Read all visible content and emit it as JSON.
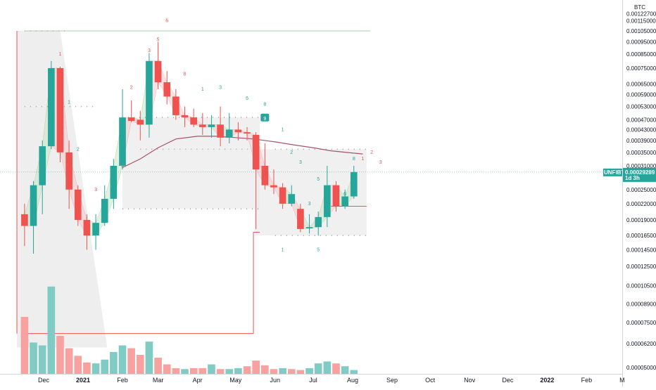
{
  "chart": {
    "symbol": "UNFIBTC",
    "currency_label": "BTC",
    "last_price_label": "0.00029289",
    "countdown_label": "1d 3h",
    "colors": {
      "up": "#26a69a",
      "down": "#ef5350",
      "volume_up": "#80cbc4",
      "volume_down": "#f7a1a1",
      "ma_line": "#a6546b",
      "band_fill": "#ececec",
      "level_green": "#a5d6a7",
      "level_red": "#ef5350",
      "cloud_green": "#c8e6c9",
      "cloud_red": "#f8c9c9",
      "cloud_yellow": "#fff9c4",
      "label_bg": "#26a69a",
      "axis_text": "#131722"
    }
  },
  "price_axis": {
    "labels": [
      {
        "label": "0.00122700",
        "v": 0.001227
      },
      {
        "label": "0.00115000",
        "v": 0.00115
      },
      {
        "label": "0.00105000",
        "v": 0.00105
      },
      {
        "label": "0.00095000",
        "v": 0.00095
      },
      {
        "label": "0.00085000",
        "v": 0.00085
      },
      {
        "label": "0.00075000",
        "v": 0.00075
      },
      {
        "label": "0.00065000",
        "v": 0.00065
      },
      {
        "label": "0.00059000",
        "v": 0.00059
      },
      {
        "label": "0.00053000",
        "v": 0.00053
      },
      {
        "label": "0.00047000",
        "v": 0.00047
      },
      {
        "label": "0.00043000",
        "v": 0.00043
      },
      {
        "label": "0.00039000",
        "v": 0.00039
      },
      {
        "label": "0.00035000",
        "v": 0.00035
      },
      {
        "label": "0.00031000",
        "v": 0.00031
      },
      {
        "label": "0.00025000",
        "v": 0.00025
      },
      {
        "label": "0.00022000",
        "v": 0.00022
      },
      {
        "label": "0.00019000",
        "v": 0.00019
      },
      {
        "label": "0.00016500",
        "v": 0.000165
      },
      {
        "label": "0.00014500",
        "v": 0.000145
      },
      {
        "label": "0.00012500",
        "v": 0.000125
      },
      {
        "label": "0.00010500",
        "v": 0.000105
      },
      {
        "label": "0.00008900",
        "v": 8.9e-05
      },
      {
        "label": "0.00007500",
        "v": 7.5e-05
      },
      {
        "label": "0.00006200",
        "v": 6.2e-05
      },
      {
        "label": "0.00005000",
        "v": 5e-05
      }
    ]
  },
  "time_axis": {
    "labels": [
      {
        "label": "Dec",
        "d": "2020-12-01",
        "bold": false
      },
      {
        "label": "2021",
        "d": "2021-01-01",
        "bold": true
      },
      {
        "label": "Feb",
        "d": "2021-02-01",
        "bold": false
      },
      {
        "label": "Mar",
        "d": "2021-03-01",
        "bold": false
      },
      {
        "label": "Apr",
        "d": "2021-04-01",
        "bold": false
      },
      {
        "label": "May",
        "d": "2021-05-01",
        "bold": false
      },
      {
        "label": "Jun",
        "d": "2021-06-01",
        "bold": false
      },
      {
        "label": "Jul",
        "d": "2021-07-01",
        "bold": false
      },
      {
        "label": "Aug",
        "d": "2021-08-01",
        "bold": false
      },
      {
        "label": "Sep",
        "d": "2021-09-01",
        "bold": false
      },
      {
        "label": "Oct",
        "d": "2021-10-01",
        "bold": false
      },
      {
        "label": "Nov",
        "d": "2021-11-01",
        "bold": false
      },
      {
        "label": "Dec",
        "d": "2021-12-01",
        "bold": false
      },
      {
        "label": "2022",
        "d": "2022-01-01",
        "bold": true
      },
      {
        "label": "Feb",
        "d": "2022-02-01",
        "bold": false
      },
      {
        "label": "M",
        "d": "2022-03-01",
        "bold": false
      }
    ]
  },
  "chart_data": {
    "type": "candlestick",
    "symbol": "UNFIBTC",
    "x_axis": "date (week start)",
    "y_axis": "price in BTC (log scale)",
    "ylim": [
      4.5e-05,
      0.00125
    ],
    "series": [
      {
        "d": "2020-11-16",
        "o": 0.0002,
        "h": 0.00022,
        "l": 0.00015,
        "c": 0.00018
      },
      {
        "d": "2020-11-23",
        "o": 0.00018,
        "h": 0.00027,
        "l": 0.00014,
        "c": 0.00026
      },
      {
        "d": "2020-11-30",
        "o": 0.00026,
        "h": 0.00039,
        "l": 0.0002,
        "c": 0.00037
      },
      {
        "d": "2020-12-07",
        "o": 0.00037,
        "h": 0.0008,
        "l": 0.00036,
        "c": 0.00075
      },
      {
        "d": "2020-12-14",
        "o": 0.00075,
        "h": 0.00076,
        "l": 0.00032,
        "c": 0.00035
      },
      {
        "d": "2020-12-21",
        "o": 0.00035,
        "h": 0.00039,
        "l": 0.00021,
        "c": 0.00025
      },
      {
        "d": "2020-12-28",
        "o": 0.00025,
        "h": 0.00026,
        "l": 0.00018,
        "c": 0.00019
      },
      {
        "d": "2021-01-04",
        "o": 0.00019,
        "h": 0.0002,
        "l": 0.000145,
        "c": 0.000165
      },
      {
        "d": "2021-01-11",
        "o": 0.000165,
        "h": 0.0002,
        "l": 0.000145,
        "c": 0.000185
      },
      {
        "d": "2021-01-18",
        "o": 0.000185,
        "h": 0.00026,
        "l": 0.00018,
        "c": 0.00023
      },
      {
        "d": "2021-01-25",
        "o": 0.00023,
        "h": 0.00033,
        "l": 0.00021,
        "c": 0.00031
      },
      {
        "d": "2021-02-01",
        "o": 0.00031,
        "h": 0.00062,
        "l": 0.0003,
        "c": 0.00048
      },
      {
        "d": "2021-02-08",
        "o": 0.00048,
        "h": 0.00056,
        "l": 0.00046,
        "c": 0.000465
      },
      {
        "d": "2021-02-15",
        "o": 0.00047,
        "h": 0.00051,
        "l": 0.00039,
        "c": 0.00045
      },
      {
        "d": "2021-02-22",
        "o": 0.00045,
        "h": 0.00086,
        "l": 0.0004,
        "c": 0.0008
      },
      {
        "d": "2021-03-01",
        "o": 0.0008,
        "h": 0.00095,
        "l": 0.00062,
        "c": 0.00066
      },
      {
        "d": "2021-03-08",
        "o": 0.00066,
        "h": 0.00073,
        "l": 0.00054,
        "c": 0.00058
      },
      {
        "d": "2021-03-15",
        "o": 0.00058,
        "h": 0.00062,
        "l": 0.00047,
        "c": 0.00049
      },
      {
        "d": "2021-03-22",
        "o": 0.00049,
        "h": 0.00053,
        "l": 0.00044,
        "c": 0.00048
      },
      {
        "d": "2021-03-29",
        "o": 0.00048,
        "h": 0.00052,
        "l": 0.00044,
        "c": 0.00045
      },
      {
        "d": "2021-04-05",
        "o": 0.00045,
        "h": 0.0005,
        "l": 0.00041,
        "c": 0.00044
      },
      {
        "d": "2021-04-12",
        "o": 0.00044,
        "h": 0.00049,
        "l": 0.0004,
        "c": 0.00045
      },
      {
        "d": "2021-04-19",
        "o": 0.00045,
        "h": 0.00053,
        "l": 0.00037,
        "c": 0.0004
      },
      {
        "d": "2021-04-26",
        "o": 0.0004,
        "h": 0.0005,
        "l": 0.00038,
        "c": 0.00043
      },
      {
        "d": "2021-05-03",
        "o": 0.00043,
        "h": 0.00046,
        "l": 0.00039,
        "c": 0.00042
      },
      {
        "d": "2021-05-10",
        "o": 0.00042,
        "h": 0.00044,
        "l": 0.00039,
        "c": 0.000415
      },
      {
        "d": "2021-05-17",
        "o": 0.00041,
        "h": 0.00042,
        "l": 0.000175,
        "c": 0.0003
      },
      {
        "d": "2021-05-24",
        "o": 0.00031,
        "h": 0.00038,
        "l": 0.00025,
        "c": 0.00026
      },
      {
        "d": "2021-05-31",
        "o": 0.00026,
        "h": 0.0003,
        "l": 0.00024,
        "c": 0.000255
      },
      {
        "d": "2021-06-07",
        "o": 0.000255,
        "h": 0.000265,
        "l": 0.00021,
        "c": 0.00022
      },
      {
        "d": "2021-06-14",
        "o": 0.00022,
        "h": 0.00026,
        "l": 0.000215,
        "c": 0.00024
      },
      {
        "d": "2021-06-21",
        "o": 0.00021,
        "h": 0.00022,
        "l": 0.00017,
        "c": 0.000175
      },
      {
        "d": "2021-06-28",
        "o": 0.000176,
        "h": 0.0002,
        "l": 0.000168,
        "c": 0.000178
      },
      {
        "d": "2021-07-05",
        "o": 0.000178,
        "h": 0.000205,
        "l": 0.000165,
        "c": 0.000195
      },
      {
        "d": "2021-07-12",
        "o": 0.000195,
        "h": 0.00031,
        "l": 0.000178,
        "c": 0.00026
      },
      {
        "d": "2021-07-19",
        "o": 0.00026,
        "h": 0.00027,
        "l": 0.000205,
        "c": 0.000215
      },
      {
        "d": "2021-07-26",
        "o": 0.000215,
        "h": 0.00025,
        "l": 0.00021,
        "c": 0.000235
      },
      {
        "d": "2021-08-02",
        "o": 0.000235,
        "h": 0.00031,
        "l": 0.00023,
        "c": 0.00029289
      }
    ],
    "volume": [
      {
        "d": "2020-11-16",
        "v": 0.6,
        "up": false
      },
      {
        "d": "2020-11-23",
        "v": 0.33,
        "up": true
      },
      {
        "d": "2020-11-30",
        "v": 0.3,
        "up": true
      },
      {
        "d": "2020-12-07",
        "v": 0.92,
        "up": true
      },
      {
        "d": "2020-12-14",
        "v": 0.4,
        "up": false
      },
      {
        "d": "2020-12-21",
        "v": 0.27,
        "up": false
      },
      {
        "d": "2020-12-28",
        "v": 0.19,
        "up": false
      },
      {
        "d": "2021-01-04",
        "v": 0.12,
        "up": false
      },
      {
        "d": "2021-01-11",
        "v": 0.11,
        "up": true
      },
      {
        "d": "2021-01-18",
        "v": 0.15,
        "up": true
      },
      {
        "d": "2021-01-25",
        "v": 0.23,
        "up": true
      },
      {
        "d": "2021-02-01",
        "v": 0.3,
        "up": true
      },
      {
        "d": "2021-02-08",
        "v": 0.27,
        "up": false
      },
      {
        "d": "2021-02-15",
        "v": 0.2,
        "up": false
      },
      {
        "d": "2021-02-22",
        "v": 0.34,
        "up": true
      },
      {
        "d": "2021-03-01",
        "v": 0.17,
        "up": false
      },
      {
        "d": "2021-03-08",
        "v": 0.1,
        "up": false
      },
      {
        "d": "2021-03-15",
        "v": 0.06,
        "up": false
      },
      {
        "d": "2021-03-22",
        "v": 0.05,
        "up": true
      },
      {
        "d": "2021-03-29",
        "v": 0.06,
        "up": false
      },
      {
        "d": "2021-04-05",
        "v": 0.06,
        "up": false
      },
      {
        "d": "2021-04-12",
        "v": 0.1,
        "up": true
      },
      {
        "d": "2021-04-19",
        "v": 0.05,
        "up": false
      },
      {
        "d": "2021-04-26",
        "v": 0.05,
        "up": true
      },
      {
        "d": "2021-05-03",
        "v": 0.06,
        "up": true
      },
      {
        "d": "2021-05-10",
        "v": 0.08,
        "up": false
      },
      {
        "d": "2021-05-17",
        "v": 0.14,
        "up": false
      },
      {
        "d": "2021-05-24",
        "v": 0.09,
        "up": false
      },
      {
        "d": "2021-05-31",
        "v": 0.05,
        "up": false
      },
      {
        "d": "2021-06-07",
        "v": 0.06,
        "up": true
      },
      {
        "d": "2021-06-14",
        "v": 0.05,
        "up": false
      },
      {
        "d": "2021-06-21",
        "v": 0.04,
        "up": false
      },
      {
        "d": "2021-06-28",
        "v": 0.06,
        "up": true
      },
      {
        "d": "2021-07-05",
        "v": 0.11,
        "up": true
      },
      {
        "d": "2021-07-12",
        "v": 0.13,
        "up": true
      },
      {
        "d": "2021-07-19",
        "v": 0.11,
        "up": false
      },
      {
        "d": "2021-07-26",
        "v": 0.08,
        "up": true
      },
      {
        "d": "2021-08-02",
        "v": 0.04,
        "up": true
      }
    ],
    "moving_average": [
      {
        "d": "2021-02-01",
        "v": 0.000305
      },
      {
        "d": "2021-02-15",
        "v": 0.00033
      },
      {
        "d": "2021-03-01",
        "v": 0.000365
      },
      {
        "d": "2021-03-15",
        "v": 0.000395
      },
      {
        "d": "2021-04-01",
        "v": 0.000405
      },
      {
        "d": "2021-04-15",
        "v": 0.000405
      },
      {
        "d": "2021-05-01",
        "v": 0.0004
      },
      {
        "d": "2021-05-15",
        "v": 0.000395
      },
      {
        "d": "2021-06-01",
        "v": 0.000385
      },
      {
        "d": "2021-06-15",
        "v": 0.000375
      },
      {
        "d": "2021-07-01",
        "v": 0.000365
      },
      {
        "d": "2021-07-15",
        "v": 0.000355
      },
      {
        "d": "2021-08-01",
        "v": 0.000348
      },
      {
        "d": "2021-08-09",
        "v": 0.000345
      }
    ],
    "levels": [
      {
        "kind": "green",
        "v": 0.00105,
        "from": "2020-11-16",
        "to": "2021-08-15"
      },
      {
        "kind": "red",
        "v": 6.8e-05,
        "from": "2020-11-16",
        "to": "2021-05-15"
      }
    ],
    "td_labels": [
      {
        "text": "1",
        "d": "2020-12-14",
        "v": 0.00085,
        "color": "red"
      },
      {
        "text": "3",
        "d": "2021-02-22",
        "v": 0.00088,
        "color": "red"
      },
      {
        "text": "5",
        "d": "2021-03-01",
        "v": 0.00097,
        "color": "red"
      },
      {
        "text": "6",
        "d": "2021-03-08",
        "v": 0.00115,
        "color": "red"
      },
      {
        "text": "2",
        "d": "2021-02-08",
        "v": 0.00063,
        "color": "red"
      },
      {
        "text": "8",
        "d": "2021-03-22",
        "v": 0.00071,
        "color": "red"
      },
      {
        "text": "1",
        "d": "2021-04-05",
        "v": 0.00062,
        "color": "green"
      },
      {
        "text": "3",
        "d": "2021-04-19",
        "v": 0.00063,
        "color": "green"
      },
      {
        "text": "6",
        "d": "2021-05-10",
        "v": 0.00057,
        "color": "green"
      },
      {
        "text": "8",
        "d": "2021-05-24",
        "v": 0.00054,
        "color": "green"
      },
      {
        "text": "1",
        "d": "2020-12-21",
        "v": 0.00055,
        "color": "green"
      },
      {
        "text": "2",
        "d": "2020-12-28",
        "v": 0.00036,
        "color": "green"
      },
      {
        "text": "3",
        "d": "2021-01-11",
        "v": 0.00025,
        "color": "red"
      },
      {
        "text": "5",
        "d": "2021-02-01",
        "v": 0.00031,
        "color": "green"
      },
      {
        "text": "1",
        "d": "2021-06-07",
        "v": 0.00043,
        "color": "green"
      },
      {
        "text": "2",
        "d": "2021-06-14",
        "v": 0.00035,
        "color": "green"
      },
      {
        "text": "3",
        "d": "2021-06-21",
        "v": 0.00032,
        "color": "green"
      },
      {
        "text": "5",
        "d": "2021-07-05",
        "v": 0.000275,
        "color": "green"
      },
      {
        "text": "3",
        "d": "2021-06-28",
        "v": 0.00022,
        "color": "green"
      },
      {
        "text": "6",
        "d": "2021-07-26",
        "v": 0.00024,
        "color": "green"
      },
      {
        "text": "8",
        "d": "2021-08-02",
        "v": 0.00033,
        "color": "green"
      },
      {
        "text": "1",
        "d": "2021-08-09",
        "v": 0.00033,
        "color": "red"
      },
      {
        "text": "2",
        "d": "2021-08-16",
        "v": 0.00035,
        "color": "red"
      },
      {
        "text": "3",
        "d": "2021-08-23",
        "v": 0.00032,
        "color": "red"
      },
      {
        "text": "1",
        "d": "2021-06-07",
        "v": 0.000145,
        "color": "green"
      },
      {
        "text": "5",
        "d": "2021-07-05",
        "v": 0.000145,
        "color": "green"
      },
      {
        "text": "9",
        "d": "2021-05-24",
        "v": 0.000475,
        "color": "white",
        "boxed": true
      }
    ]
  }
}
